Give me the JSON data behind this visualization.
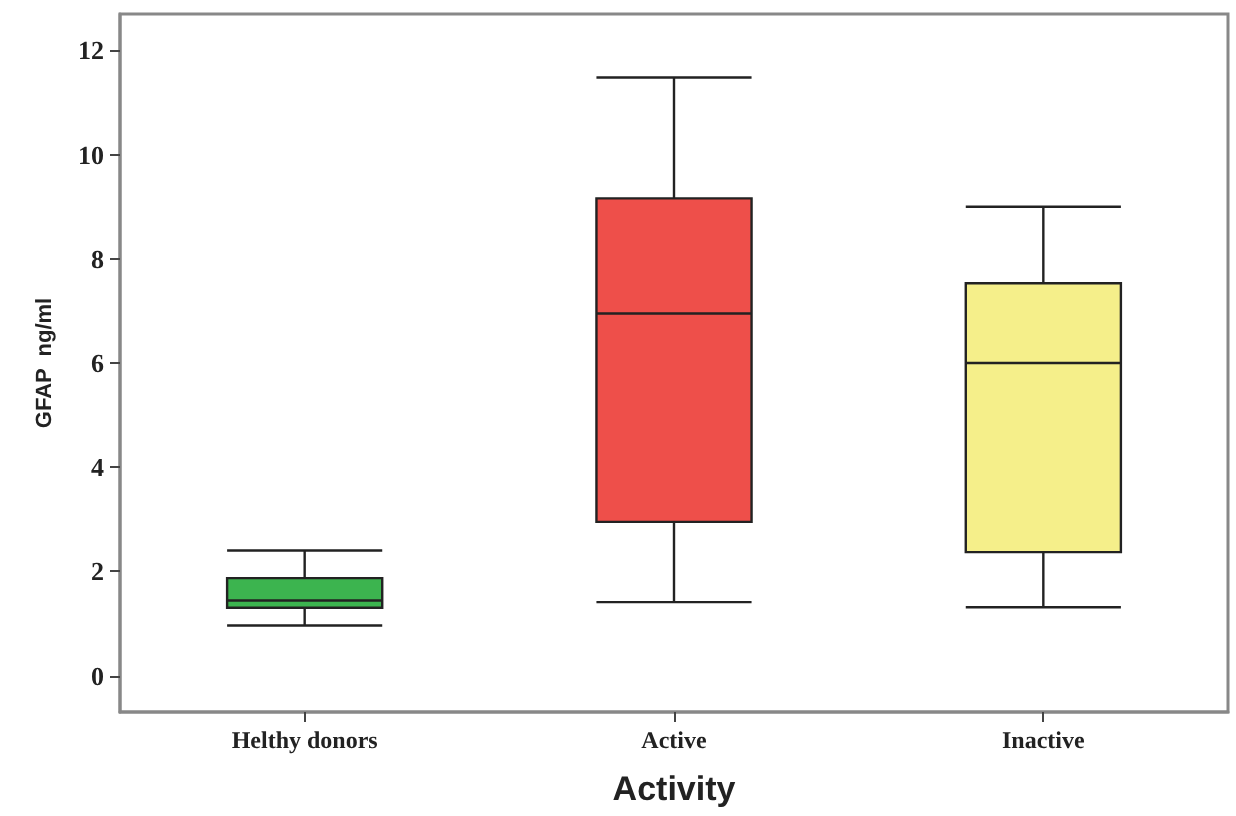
{
  "chart_data": {
    "type": "box",
    "xlabel": "Activity",
    "ylabel": "GFAP  ng/ml",
    "categories": [
      "Helthy donors",
      "Active",
      "Inactive"
    ],
    "colors": [
      "#3cb44f",
      "#ee4f4a",
      "#f5ef8a"
    ],
    "boxes": [
      {
        "low": 0.96,
        "q1": 1.3,
        "median": 1.44,
        "q3": 1.87,
        "high": 2.4
      },
      {
        "low": 1.41,
        "q1": 2.95,
        "median": 6.95,
        "q3": 9.16,
        "high": 11.48
      },
      {
        "low": 1.31,
        "q1": 2.37,
        "median": 6.0,
        "q3": 7.53,
        "high": 9.0
      }
    ],
    "ylim": [
      -0.7,
      12.7
    ],
    "yticks": [
      0,
      2,
      4,
      6,
      8,
      10,
      12
    ],
    "grid": false
  }
}
